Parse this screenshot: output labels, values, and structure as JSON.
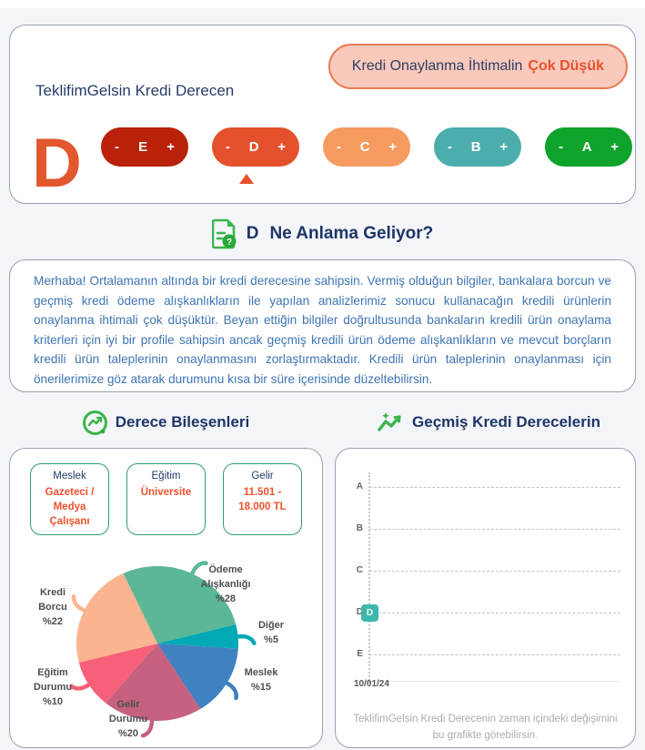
{
  "page": {
    "background": "#F3F5F9"
  },
  "header_card": {
    "title": "TeklifimGelsin Kredi Derecen",
    "badge": {
      "prefix": "Kredi Onaylanma İhtimalin",
      "highlight": "Çok Düşük",
      "bg_color": "#F9C9BC",
      "border_color": "#E87A52",
      "highlight_color": "#E8502B"
    },
    "current_grade": "D",
    "current_grade_color": "#E2572E",
    "grade_pills": [
      {
        "letter": "E",
        "minus_label": "-",
        "plus_label": "+",
        "color": "#B92109",
        "active": false
      },
      {
        "letter": "D",
        "minus_label": "-",
        "plus_label": "+",
        "color": "#E4502B",
        "active": true
      },
      {
        "letter": "C",
        "minus_label": "-",
        "plus_label": "+",
        "color": "#F59B5F",
        "active": false
      },
      {
        "letter": "B",
        "minus_label": "-",
        "plus_label": "+",
        "color": "#4BAEAC",
        "active": false
      },
      {
        "letter": "A",
        "minus_label": "-",
        "plus_label": "+",
        "color": "#0FA32C",
        "active": false
      }
    ]
  },
  "meaning_section": {
    "grade": "D",
    "title": "Ne Anlama Geliyor?",
    "icon": "document-question-icon",
    "icon_color": "#3BB54A",
    "paragraph": "Merhaba! Ortalamanın altında bir kredi derecesine sahipsin. Vermiş olduğun bilgiler, bankalara borcun ve geçmiş kredi ödeme alışkanlıkların ile yapılan analizlerimiz sonucu kullanacağın kredili ürünlerin onaylanma ihtimali çok düşüktür. Beyan ettiğin bilgiler doğrultusunda bankaların kredili ürün onaylama kriterleri için iyi bir profile sahipsin ancak geçmiş kredili ürün ödeme alışkanlıkların ve mevcut borçların kredili ürün taleplerinin onaylanmasını zorlaştırmaktadır. Kredili ürün taleplerinin onaylanması için önerilerimize göz atarak durumunu kısa bir süre içerisinde düzeltebilirsin."
  },
  "components_section": {
    "title": "Derece Bileşenleri",
    "icon": "trending-up-circle-icon",
    "attributes": [
      {
        "label": "Meslek",
        "value": "Gazeteci / Medya Çalışanı"
      },
      {
        "label": "Eğitim",
        "value": "Üniversite"
      },
      {
        "label": "Gelir",
        "value": "11.501 - 18.000 TL"
      }
    ],
    "box_border_color": "#2E9D6B",
    "value_color": "#F0512D"
  },
  "history_section": {
    "title": "Geçmiş Kredi Derecelerin",
    "icon": "sparkline-icon",
    "caption": "TeklifimGelsin Kredi Derecenin zaman içindeki değişimini bu grafikte görebilirsin."
  },
  "chart_data": [
    {
      "type": "pie",
      "title": "Derece Bileşenleri",
      "labels": [
        "Ödeme Alışkanlığı",
        "Diğer",
        "Meslek",
        "Gelir Durumu",
        "Eğitim Durumu",
        "Kredi Borcu"
      ],
      "values": [
        28,
        5,
        15,
        20,
        10,
        22
      ],
      "value_prefix": "%",
      "colors": [
        "#5CB797",
        "#00A9B5",
        "#3F81C1",
        "#C6617F",
        "#F85F78",
        "#FAB490"
      ],
      "start_angle_deg": 115,
      "direction": "clockwise",
      "legend": "callout-labels"
    },
    {
      "type": "scatter",
      "title": "Geçmiş Kredi Derecelerin",
      "y_categories": [
        "A",
        "B",
        "C",
        "D",
        "E"
      ],
      "x_labels": [
        "10/01/24"
      ],
      "points": [
        {
          "x": "10/01/24",
          "grade": "D"
        }
      ],
      "point_color": "#3CB8AC",
      "grid": "dashed-horizontal"
    }
  ]
}
